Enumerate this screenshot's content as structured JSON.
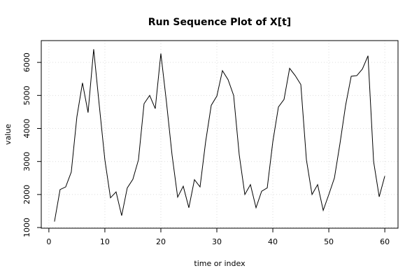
{
  "chart_data": {
    "type": "line",
    "title": "Run Sequence Plot of X[t]",
    "x_label": "time or index",
    "y_label": "value",
    "x": [
      1,
      2,
      3,
      4,
      5,
      6,
      7,
      8,
      9,
      10,
      11,
      12,
      13,
      14,
      15,
      16,
      17,
      18,
      19,
      20,
      21,
      22,
      23,
      24,
      25,
      26,
      27,
      28,
      29,
      30,
      31,
      32,
      33,
      34,
      35,
      36,
      37,
      38,
      39,
      40,
      41,
      42,
      43,
      44,
      45,
      46,
      47,
      48,
      49,
      50,
      51,
      52,
      53,
      54,
      55,
      56,
      57,
      58,
      59,
      60
    ],
    "values": [
      1180,
      2150,
      2230,
      2680,
      4350,
      5380,
      4480,
      6400,
      4700,
      3050,
      1900,
      2080,
      1360,
      2200,
      2460,
      3050,
      4750,
      5000,
      4600,
      6270,
      4800,
      3200,
      1920,
      2250,
      1600,
      2450,
      2230,
      3600,
      4700,
      4980,
      5750,
      5480,
      5000,
      3200,
      2000,
      2300,
      1600,
      2100,
      2200,
      3600,
      4650,
      4880,
      5820,
      5600,
      5330,
      3050,
      2000,
      2300,
      1520,
      2000,
      2500,
      3550,
      4700,
      5580,
      5600,
      5800,
      6200,
      3000,
      1930,
      2560
    ],
    "color": "#000000",
    "xlim": [
      -1.36,
      62.36
    ],
    "ylim": [
      980,
      6660
    ],
    "xticks": [
      0,
      10,
      20,
      30,
      40,
      50,
      60
    ],
    "yticks": [
      1000,
      2000,
      3000,
      4000,
      5000,
      6000
    ],
    "grid": true
  }
}
